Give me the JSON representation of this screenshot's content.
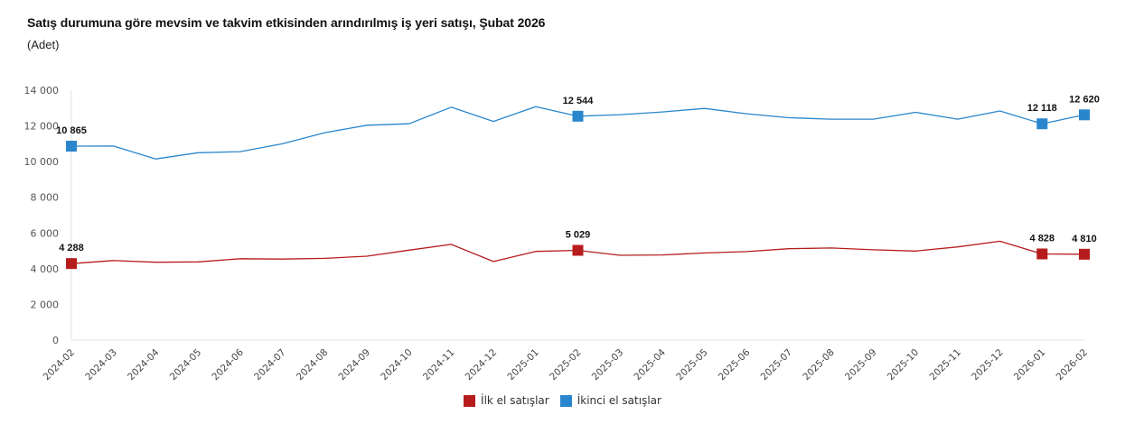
{
  "chart_data": {
    "type": "line",
    "title": "Satış durumuna göre mevsim ve takvim etkisinden arındırılmış iş yeri satışı, Şubat 2026",
    "subtitle": "(Adet)",
    "xlabel": "",
    "ylabel": "",
    "ylim": [
      0,
      14000
    ],
    "yticks": [
      0,
      2000,
      4000,
      6000,
      8000,
      10000,
      12000,
      14000
    ],
    "ytick_labels": [
      "0",
      "2 000",
      "4 000",
      "6 000",
      "8 000",
      "10 000",
      "12 000",
      "14 000"
    ],
    "grid": false,
    "legend_position": "bottom-center",
    "categories": [
      "2024-02",
      "2024-03",
      "2024-04",
      "2024-05",
      "2024-06",
      "2024-07",
      "2024-08",
      "2024-09",
      "2024-10",
      "2024-11",
      "2024-12",
      "2025-01",
      "2025-02",
      "2025-03",
      "2025-04",
      "2025-05",
      "2025-06",
      "2025-07",
      "2025-08",
      "2025-09",
      "2025-10",
      "2025-11",
      "2025-12",
      "2026-01",
      "2026-02"
    ],
    "series": [
      {
        "name": "İlk el satışlar",
        "color": "#b71c1c",
        "values": [
          4288,
          4460,
          4360,
          4380,
          4560,
          4540,
          4580,
          4700,
          5040,
          5360,
          4400,
          4970,
          5029,
          4750,
          4770,
          4880,
          4960,
          5120,
          5160,
          5060,
          4990,
          5220,
          5540,
          4828,
          4810
        ],
        "labeled_points": [
          {
            "index": 0,
            "label": "4 288"
          },
          {
            "index": 12,
            "label": "5 029"
          },
          {
            "index": 23,
            "label": "4 828"
          },
          {
            "index": 24,
            "label": "4 810"
          }
        ]
      },
      {
        "name": "İkinci el satışlar",
        "color": "#2a86cc",
        "values": [
          10865,
          10870,
          10150,
          10500,
          10560,
          11000,
          11620,
          12040,
          12120,
          13050,
          12250,
          13080,
          12544,
          12630,
          12780,
          12980,
          12680,
          12460,
          12380,
          12380,
          12760,
          12380,
          12840,
          12118,
          12620
        ],
        "labeled_points": [
          {
            "index": 0,
            "label": "10 865"
          },
          {
            "index": 12,
            "label": "12 544"
          },
          {
            "index": 23,
            "label": "12 118"
          },
          {
            "index": 24,
            "label": "12 620"
          }
        ]
      }
    ]
  }
}
